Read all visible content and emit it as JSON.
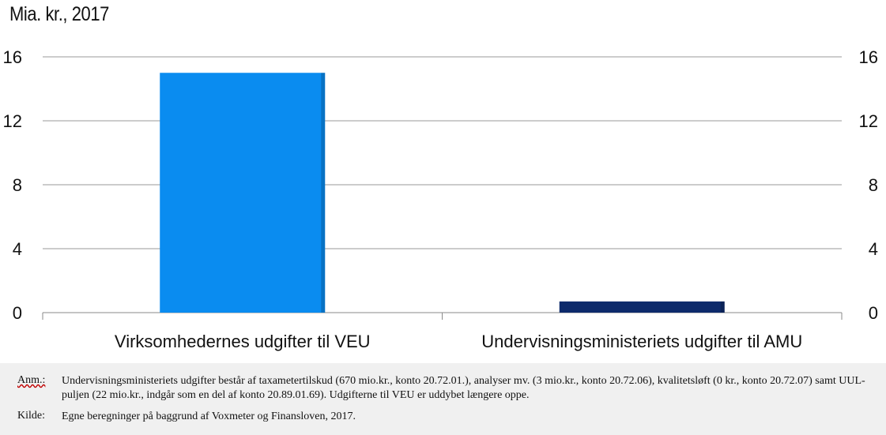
{
  "unit_title": "Mia. kr., 2017",
  "chart_data": {
    "type": "bar",
    "categories": [
      "Virksomhedernes udgifter til VEU",
      "Undervisningsministeriets udgifter til AMU"
    ],
    "values": [
      15.0,
      0.7
    ],
    "bar_colors": [
      "#0a8cf0",
      "#0d2a6b"
    ],
    "ylim": [
      0,
      16
    ],
    "yticks": [
      0,
      4,
      8,
      12,
      16
    ],
    "y_axis_left": true,
    "y_axis_right": true,
    "grid": true,
    "xlabel": "",
    "ylabel": ""
  },
  "notes": {
    "anm_label": "Anm.:",
    "anm_text": "Undervisningsministeriets udgifter består af taxametertilskud (670 mio.kr., konto 20.72.01.), analyser mv. (3 mio.kr., konto 20.72.06), kvalitetsløft (0 kr., konto 20.72.07) samt UUL-puljen (22 mio.kr., indgår som en del af konto 20.89.01.69). Udgifterne til VEU er uddybet længere oppe.",
    "kilde_label": "Kilde:",
    "kilde_text": "Egne beregninger på baggrund af Voxmeter og Finansloven, 2017."
  }
}
